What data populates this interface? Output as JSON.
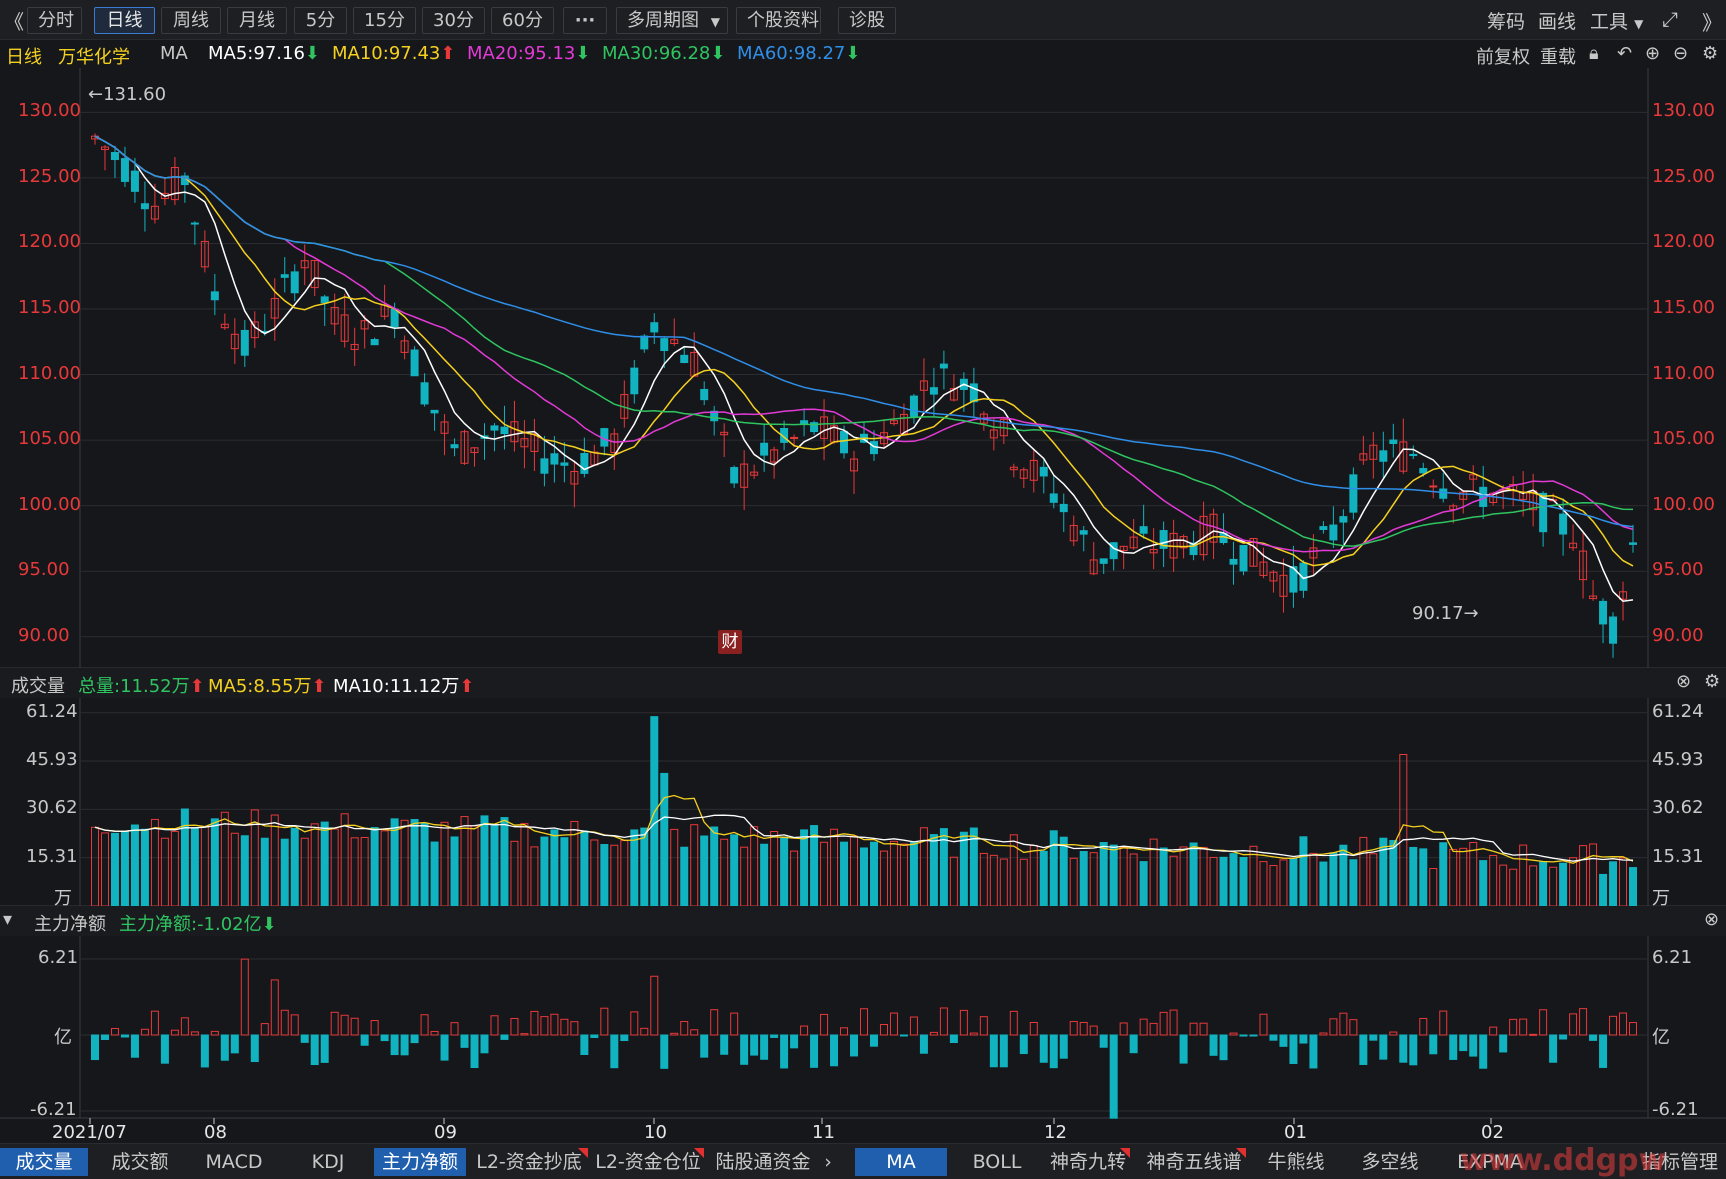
{
  "toolbar": {
    "back_glyph": "《",
    "periods": [
      "分时",
      "日线",
      "周线",
      "月线",
      "5分",
      "15分",
      "30分",
      "60分",
      "···"
    ],
    "active_period": "日线",
    "multi_period": "多周期图",
    "stock_info": "个股资料",
    "diagnose": "诊股",
    "right_items": [
      "筹码",
      "画线",
      "工具"
    ],
    "forward_glyph": "》"
  },
  "ma_line": {
    "chart_type": "日线",
    "stock_name": "万华化学",
    "indicator": "MA",
    "ma5": "MA5:97.16",
    "ma10": "MA10:97.43",
    "ma20": "MA20:95.13",
    "ma30": "MA30:96.28",
    "ma60": "MA60:98.27",
    "adjust": "前复权",
    "reset": "重载"
  },
  "colors": {
    "up": "#e8393a",
    "down": "#12b3c1",
    "ma5": "#ffffff",
    "ma10": "#f5d11f",
    "ma20": "#e23ad6",
    "ma30": "#2fc460",
    "ma60": "#2f8fe8",
    "axis_red": "#e8393a",
    "grid": "#2b2c31"
  },
  "price_axis": [
    "130.00",
    "125.00",
    "120.00",
    "115.00",
    "110.00",
    "105.00",
    "100.00",
    "95.00",
    "90.00"
  ],
  "price_high_label": "←131.60",
  "price_low_label": "90.17→",
  "cai_badge": "财",
  "volume_pane": {
    "title": "成交量",
    "total": "总量:11.52万",
    "ma5": "MA5:8.55万",
    "ma10": "MA10:11.12万",
    "axis": [
      "61.24",
      "45.93",
      "30.62",
      "15.31",
      "万"
    ]
  },
  "money_pane": {
    "title": "主力净额",
    "value": "主力净额:-1.02亿",
    "axis": [
      "6.21",
      "亿",
      "-6.21"
    ]
  },
  "date_axis": [
    "2021/07",
    "08",
    "09",
    "10",
    "11",
    "12",
    "01",
    "02"
  ],
  "bottom_tabs_left": [
    "成交量",
    "成交额",
    "MACD",
    "KDJ",
    "主力净额",
    "L2-资金抄底",
    "L2-资金仓位",
    "陆股通资金"
  ],
  "bottom_tabs_right": [
    "MA",
    "BOLL",
    "神奇九转",
    "神奇五线谱",
    "牛熊线",
    "多空线",
    "EXPMA",
    "指标管理"
  ],
  "watermark": "www.ddgpw"
}
